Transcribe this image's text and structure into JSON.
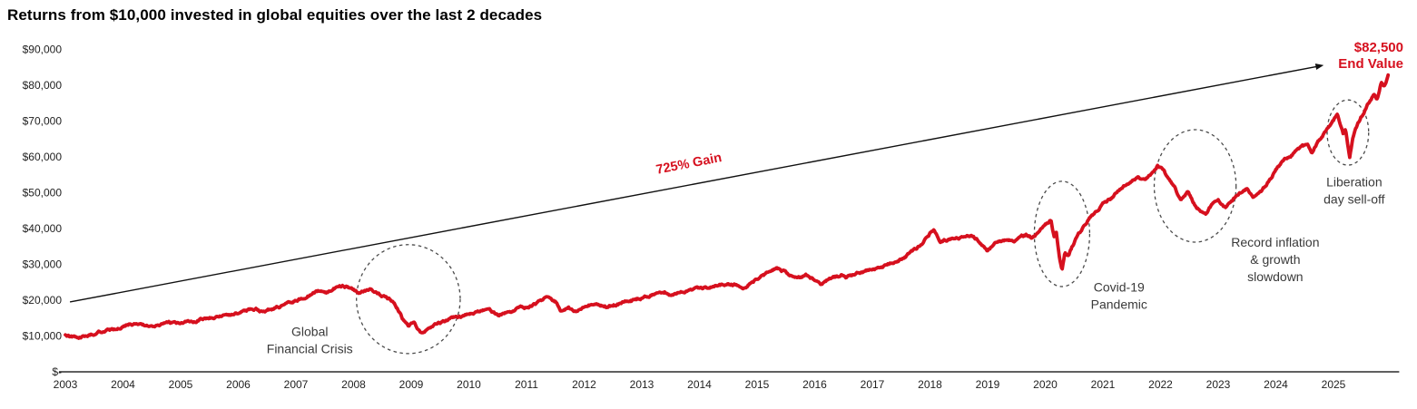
{
  "title": "Returns from $10,000 invested in global equities over the last 2 decades",
  "colors": {
    "line": "#d6101e",
    "accent_text": "#d6101e",
    "axis": "#000000",
    "tick_text": "#1f1f1f",
    "annotation_text": "#3a3a3a",
    "ellipse": "#4a4a4a",
    "background": "#ffffff"
  },
  "chart_data": {
    "type": "line",
    "title": "Returns from $10,000 invested in global equities over the last 2 decades",
    "xlabel": "",
    "ylabel": "",
    "x_range": [
      2002.89,
      2026.14
    ],
    "y_range": [
      0,
      90000
    ],
    "grid": false,
    "legend": "none",
    "x_ticks": [
      2003,
      2004,
      2005,
      2006,
      2007,
      2008,
      2009,
      2010,
      2011,
      2012,
      2013,
      2014,
      2015,
      2016,
      2017,
      2018,
      2019,
      2020,
      2021,
      2022,
      2023,
      2024,
      2025
    ],
    "y_ticks": [
      {
        "label": "$90,000",
        "value": 90000
      },
      {
        "label": "$80,000",
        "value": 80000
      },
      {
        "label": "$70,000",
        "value": 70000
      },
      {
        "label": "$60,000",
        "value": 60000
      },
      {
        "label": "$50,000",
        "value": 50000
      },
      {
        "label": "$40,000",
        "value": 40000
      },
      {
        "label": "$30,000",
        "value": 30000
      },
      {
        "label": "$20,000",
        "value": 20000
      },
      {
        "label": "$10,000",
        "value": 10000
      },
      {
        "label": "$-",
        "value": 0
      }
    ],
    "start_value": 10000,
    "end_value": 82500,
    "end_value_label": [
      "$82,500",
      "End Value"
    ],
    "gain_label": "725% Gain",
    "gain_label_at": [
      2013.83,
      57000
    ],
    "gain_label_rotation": -11,
    "gain_arrow": {
      "from": [
        2003.08,
        19500
      ],
      "to": [
        2024.8,
        85500
      ]
    },
    "series": [
      {
        "name": "Value of $10,000 invested in global equities",
        "anchors": [
          [
            2003.0,
            10200
          ],
          [
            2003.1,
            9600
          ],
          [
            2003.2,
            9400
          ],
          [
            2003.35,
            10100
          ],
          [
            2003.6,
            11100
          ],
          [
            2003.8,
            11700
          ],
          [
            2004.0,
            12700
          ],
          [
            2004.12,
            13500
          ],
          [
            2004.3,
            13100
          ],
          [
            2004.5,
            12900
          ],
          [
            2004.7,
            13200
          ],
          [
            2004.85,
            13600
          ],
          [
            2005.0,
            13600
          ],
          [
            2005.2,
            14100
          ],
          [
            2005.4,
            14800
          ],
          [
            2005.6,
            15300
          ],
          [
            2005.8,
            15900
          ],
          [
            2006.0,
            16500
          ],
          [
            2006.3,
            17600
          ],
          [
            2006.42,
            16800
          ],
          [
            2006.6,
            17700
          ],
          [
            2006.8,
            18500
          ],
          [
            2007.0,
            19900
          ],
          [
            2007.2,
            21200
          ],
          [
            2007.4,
            22700
          ],
          [
            2007.55,
            22200
          ],
          [
            2007.75,
            24200
          ],
          [
            2007.9,
            23600
          ],
          [
            2008.0,
            22900
          ],
          [
            2008.1,
            21900
          ],
          [
            2008.3,
            23100
          ],
          [
            2008.5,
            21300
          ],
          [
            2008.65,
            20300
          ],
          [
            2008.78,
            17200
          ],
          [
            2008.88,
            13900
          ],
          [
            2008.95,
            12900
          ],
          [
            2009.05,
            13600
          ],
          [
            2009.17,
            10900
          ],
          [
            2009.3,
            12100
          ],
          [
            2009.45,
            13200
          ],
          [
            2009.6,
            14300
          ],
          [
            2009.8,
            15300
          ],
          [
            2010.0,
            16000
          ],
          [
            2010.2,
            16900
          ],
          [
            2010.35,
            17300
          ],
          [
            2010.5,
            15900
          ],
          [
            2010.65,
            16600
          ],
          [
            2010.85,
            17500
          ],
          [
            2011.0,
            18000
          ],
          [
            2011.15,
            19000
          ],
          [
            2011.33,
            20500
          ],
          [
            2011.5,
            19500
          ],
          [
            2011.6,
            16900
          ],
          [
            2011.72,
            18000
          ],
          [
            2011.85,
            16700
          ],
          [
            2012.0,
            18000
          ],
          [
            2012.2,
            19300
          ],
          [
            2012.4,
            18200
          ],
          [
            2012.6,
            19000
          ],
          [
            2012.8,
            19700
          ],
          [
            2013.0,
            20600
          ],
          [
            2013.2,
            21500
          ],
          [
            2013.4,
            22200
          ],
          [
            2013.5,
            21400
          ],
          [
            2013.7,
            22400
          ],
          [
            2013.9,
            23000
          ],
          [
            2014.0,
            23200
          ],
          [
            2014.2,
            23700
          ],
          [
            2014.4,
            24200
          ],
          [
            2014.6,
            24400
          ],
          [
            2014.75,
            23400
          ],
          [
            2015.0,
            26000
          ],
          [
            2015.2,
            27800
          ],
          [
            2015.35,
            28900
          ],
          [
            2015.55,
            27400
          ],
          [
            2015.7,
            26000
          ],
          [
            2015.85,
            27000
          ],
          [
            2016.0,
            25500
          ],
          [
            2016.1,
            24300
          ],
          [
            2016.3,
            26300
          ],
          [
            2016.48,
            27000
          ],
          [
            2016.55,
            26200
          ],
          [
            2016.7,
            27300
          ],
          [
            2016.85,
            27800
          ],
          [
            2017.0,
            28500
          ],
          [
            2017.25,
            29800
          ],
          [
            2017.5,
            31500
          ],
          [
            2017.75,
            34000
          ],
          [
            2018.0,
            38500
          ],
          [
            2018.07,
            39200
          ],
          [
            2018.18,
            36000
          ],
          [
            2018.35,
            37200
          ],
          [
            2018.55,
            37800
          ],
          [
            2018.72,
            38300
          ],
          [
            2018.85,
            36500
          ],
          [
            2019.0,
            33900
          ],
          [
            2019.15,
            36000
          ],
          [
            2019.35,
            37100
          ],
          [
            2019.47,
            36300
          ],
          [
            2019.65,
            38000
          ],
          [
            2019.78,
            37500
          ],
          [
            2019.95,
            40000
          ],
          [
            2020.1,
            42500
          ],
          [
            2020.15,
            37800
          ],
          [
            2020.19,
            39200
          ],
          [
            2020.25,
            31500
          ],
          [
            2020.29,
            28400
          ],
          [
            2020.34,
            33800
          ],
          [
            2020.4,
            32800
          ],
          [
            2020.5,
            36200
          ],
          [
            2020.65,
            40200
          ],
          [
            2020.8,
            43500
          ],
          [
            2020.9,
            44800
          ],
          [
            2021.0,
            47000
          ],
          [
            2021.15,
            48600
          ],
          [
            2021.3,
            50800
          ],
          [
            2021.45,
            52600
          ],
          [
            2021.6,
            54300
          ],
          [
            2021.72,
            53400
          ],
          [
            2021.85,
            55600
          ],
          [
            2021.95,
            57800
          ],
          [
            2022.05,
            56200
          ],
          [
            2022.15,
            53200
          ],
          [
            2022.25,
            51800
          ],
          [
            2022.35,
            47900
          ],
          [
            2022.48,
            50200
          ],
          [
            2022.6,
            46300
          ],
          [
            2022.7,
            44800
          ],
          [
            2022.78,
            43800
          ],
          [
            2022.9,
            46800
          ],
          [
            2023.0,
            48100
          ],
          [
            2023.13,
            45900
          ],
          [
            2023.3,
            48600
          ],
          [
            2023.5,
            51300
          ],
          [
            2023.62,
            48900
          ],
          [
            2023.75,
            50300
          ],
          [
            2023.9,
            53500
          ],
          [
            2024.0,
            56500
          ],
          [
            2024.15,
            59300
          ],
          [
            2024.3,
            60800
          ],
          [
            2024.45,
            62500
          ],
          [
            2024.55,
            63300
          ],
          [
            2024.62,
            60600
          ],
          [
            2024.72,
            64000
          ],
          [
            2024.8,
            65500
          ],
          [
            2024.9,
            68000
          ],
          [
            2025.0,
            70000
          ],
          [
            2025.06,
            71800
          ],
          [
            2025.12,
            68800
          ],
          [
            2025.17,
            66000
          ],
          [
            2025.21,
            67600
          ],
          [
            2025.28,
            59800
          ],
          [
            2025.34,
            65800
          ],
          [
            2025.42,
            69000
          ],
          [
            2025.48,
            71200
          ],
          [
            2025.55,
            73000
          ],
          [
            2025.62,
            75500
          ],
          [
            2025.7,
            77500
          ],
          [
            2025.76,
            76200
          ],
          [
            2025.83,
            80800
          ],
          [
            2025.88,
            79800
          ],
          [
            2025.95,
            82800
          ]
        ]
      }
    ],
    "annotations": [
      {
        "id": "global-financial-crisis",
        "lines": [
          "Global",
          "Financial Crisis"
        ],
        "text_center": [
          2007.24,
          8900
        ],
        "ellipse_center": [
          2008.95,
          20300
        ],
        "ellipse_rx_years": 0.9,
        "ellipse_ry_dollars": 15200
      },
      {
        "id": "covid-19-pandemic",
        "lines": [
          "Covid-19",
          "Pandemic"
        ],
        "text_center": [
          2021.28,
          21300
        ],
        "ellipse_center": [
          2020.29,
          38500
        ],
        "ellipse_rx_years": 0.48,
        "ellipse_ry_dollars": 14700
      },
      {
        "id": "record-inflation-growth-slowdown",
        "lines": [
          "Record inflation",
          "& growth",
          "slowdown"
        ],
        "text_center": [
          2023.99,
          31400
        ],
        "ellipse_center": [
          2022.6,
          51900
        ],
        "ellipse_rx_years": 0.71,
        "ellipse_ry_dollars": 15700
      },
      {
        "id": "liberation-day-sell-off",
        "lines": [
          "Liberation",
          "day sell-off"
        ],
        "text_center": [
          2025.36,
          50600
        ],
        "ellipse_center": [
          2025.25,
          66800
        ],
        "ellipse_rx_years": 0.36,
        "ellipse_ry_dollars": 9100
      }
    ]
  }
}
